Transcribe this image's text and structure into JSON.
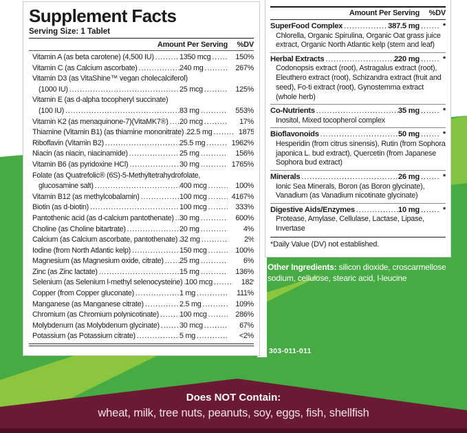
{
  "colors": {
    "green_main": "#47ab44",
    "green_light": "#82c341",
    "green_light2": "#8cc63e",
    "maroon": "#6b1a33",
    "maroon_dark": "#4e1024",
    "banner_items": "#f3e2e8"
  },
  "left_panel": {
    "title": "Supplement Facts",
    "serving_size": "Serving Size: 1 Tablet",
    "header": {
      "amount": "Amount Per Serving",
      "dv": "%DV"
    },
    "rows": [
      {
        "name": "Vitamin A (as beta carotene) (4,500 IU)",
        "amount": "1350 mcg",
        "dv": "150%"
      },
      {
        "name": "Vitamin C (as Calcium ascorbate)",
        "amount": "240 mg",
        "dv": "267%"
      },
      {
        "name": "Vitamin D3  (as VitaShine™ vegan cholecalciferol)",
        "name2": "(1000 IU)",
        "amount": "25 mcg",
        "dv": "125%"
      },
      {
        "name": "Vitamin E (as d-alpha tocopheryl succinate)",
        "name2": "(100 IU)",
        "amount": "83 mg",
        "dv": "553%"
      },
      {
        "name": "Vitamin K2 (as menaquinone-7)(VitaMK7®)",
        "amount": "20 mcg",
        "dv": "17%"
      },
      {
        "name": "Thiamine (Vitamin B1) (as thiamine mononitrate)",
        "amount": "22.5 mg",
        "dv": "1875%"
      },
      {
        "name": "Riboflavin (Vitamin B2)",
        "amount": "25.5 mg",
        "dv": "1962%"
      },
      {
        "name": "Niacin (as niacin, niacinamide)",
        "amount": "25 mg",
        "dv": "156%"
      },
      {
        "name": "Vitamin B6 (as pyridoxine HCl)",
        "amount": "30 mg",
        "dv": "1765%"
      },
      {
        "name": "Folate (as Quatrefolic® (6S)-5-Methyltetrahydrofolate,",
        "name2": "glucosamine salt)",
        "amount": "400 mcg",
        "dv": "100%"
      },
      {
        "name": "Vitamin B12 (as methylcobalamin)",
        "amount": "100 mcg",
        "dv": "4167%"
      },
      {
        "name": "Biotin (as d-biotin)",
        "amount": "100 mcg",
        "dv": "333%"
      },
      {
        "name": "Pantothenic acid (as d-calcium pantothenate)",
        "amount": "30 mg",
        "dv": "600%"
      },
      {
        "name": "Choline (as Choline bitartrate)",
        "amount": "20 mg",
        "dv": "4%"
      },
      {
        "name": "Calcium (as Calcium ascorbate, pantothenate)",
        "amount": "32 mg",
        "dv": "2%"
      },
      {
        "name": "Iodine (from North Atlantic kelp)",
        "amount": "150 mcg",
        "dv": "100%"
      },
      {
        "name": "Magnesium (as Magnesium oxide, citrate)",
        "amount": "25 mg",
        "dv": "6%"
      },
      {
        "name": "Zinc (as Zinc lactate)",
        "amount": "15 mg",
        "dv": "136%"
      },
      {
        "name": "Selenium (as Selenium l-methyl selenocysteine)",
        "amount": "100 mcg",
        "dv": "182%"
      },
      {
        "name": "Copper (from Copper gluconate)",
        "amount": "1 mg",
        "dv": "111%"
      },
      {
        "name": "Manganese (as Manganese citrate)",
        "amount": "2.5 mg",
        "dv": "109%"
      },
      {
        "name": "Chromium (as Chromium polynicotinate)",
        "amount": "100 mcg",
        "dv": "286%"
      },
      {
        "name": "Molybdenum (as Molybdenum glycinate)",
        "amount": "30 mcg",
        "dv": "67%"
      },
      {
        "name": "Potassium (as Potassium citrate)",
        "amount": "5 mg",
        "dv": "<2%"
      }
    ]
  },
  "right_panel": {
    "header": {
      "amount": "Amount Per Serving",
      "dv": "%DV"
    },
    "sections": [
      {
        "name": "SuperFood Complex",
        "amount": "387.5 mg",
        "dv": "*",
        "detail": "Chlorella, Organic Spirulina, Organic Oat grass juice extract, Organic North Atlantic kelp (stem and leaf)"
      },
      {
        "name": "Herbal Extracts",
        "amount": "220 mg",
        "dv": "*",
        "detail": "Codonopsis extract (root), Astragalus extract (root), Eleuthero extract (root), Schizandra extract (fruit and seed), Fo-ti extract (root), Gynostemma extract (whole herb)"
      },
      {
        "name": "Co-Nutrients",
        "amount": "35 mg",
        "dv": "*",
        "detail": "Inositol, Mixed tocopherol complex"
      },
      {
        "name": "Bioflavonoids",
        "amount": "50 mg",
        "dv": "*",
        "detail": "Hesperidin (from citrus sinensis), Rutin (from Sophora japonica L. bud extract), Quercetin (from Japanese Sophora bud extract)"
      },
      {
        "name": "Minerals",
        "amount": "26 mg",
        "dv": "*",
        "detail": "Ionic Sea Minerals, Boron (as Boron glycinate), Vanadium (as Vanadium nicotinate glycinate)"
      },
      {
        "name": "Digestive Aids/Enzymes",
        "amount": "10 mg",
        "dv": "*",
        "detail": "Protease, Amylase, Cellulase, Lactase, Lipase, Invertase"
      }
    ],
    "footnote": "*Daily Value (DV) not established."
  },
  "other_ingredients": {
    "label": "Other Ingredients:",
    "text": " silicon dioxide, croscarmellose sodium, cellulose, stearic acid, l-leucine"
  },
  "product_code": "303-011-011",
  "banner": {
    "title": "Does NOT Contain:",
    "items": "wheat, milk, tree nuts, peanuts, soy, eggs, fish, shellfish"
  }
}
